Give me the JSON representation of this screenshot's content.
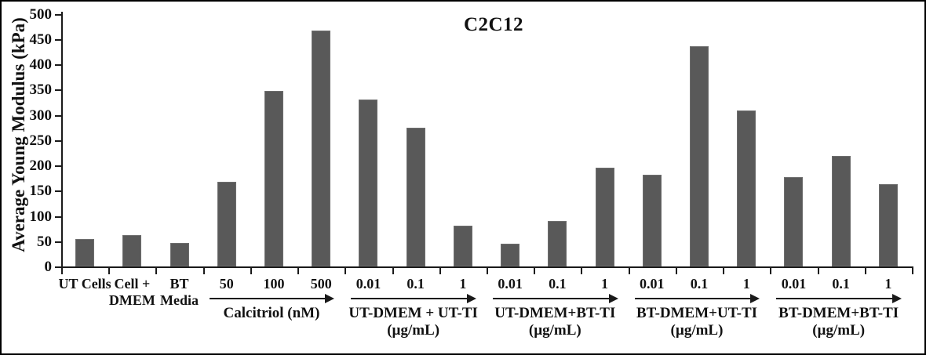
{
  "figure": {
    "title": "C2C12",
    "y_axis_label": "Average Young Modulus (kPa)"
  },
  "chart_data": {
    "type": "bar",
    "title": "C2C12",
    "xlabel": "",
    "ylabel": "Average Young Modulus (kPa)",
    "ylim": [
      0,
      500
    ],
    "ytick_step": 50,
    "ytick_labels": [
      "0",
      "50",
      "100",
      "150",
      "200",
      "250",
      "300",
      "350",
      "400",
      "450",
      "500"
    ],
    "grid": false,
    "legend": false,
    "bar_color": "#595959",
    "categories": [
      "UT Cells",
      "Cell + DMEM",
      "BT Media",
      "50",
      "100",
      "500",
      "0.01",
      "0.1",
      "1",
      "0.01",
      "0.1",
      "1",
      "0.01",
      "0.1",
      "1",
      "0.01",
      "0.1",
      "1"
    ],
    "category_label_lines": [
      [
        "UT Cells"
      ],
      [
        "Cell +",
        "DMEM"
      ],
      [
        "BT",
        "Media"
      ],
      [
        "50"
      ],
      [
        "100"
      ],
      [
        "500"
      ],
      [
        "0.01"
      ],
      [
        "0.1"
      ],
      [
        "1"
      ],
      [
        "0.01"
      ],
      [
        "0.1"
      ],
      [
        "1"
      ],
      [
        "0.01"
      ],
      [
        "0.1"
      ],
      [
        "1"
      ],
      [
        "0.01"
      ],
      [
        "0.1"
      ],
      [
        "1"
      ]
    ],
    "values": [
      55,
      62,
      47,
      168,
      348,
      466,
      331,
      275,
      80,
      45,
      90,
      196,
      181,
      435,
      308,
      176,
      219,
      163
    ],
    "groups": [
      {
        "label_lines": [
          "Calcitriol (nM)"
        ],
        "start": 3,
        "end": 5
      },
      {
        "label_lines": [
          "UT-DMEM + UT-TI",
          "(µg/mL)"
        ],
        "start": 6,
        "end": 8
      },
      {
        "label_lines": [
          "UT-DMEM+BT-TI",
          "(µg/mL)"
        ],
        "start": 9,
        "end": 11
      },
      {
        "label_lines": [
          "BT-DMEM+UT-TI",
          "(µg/mL)"
        ],
        "start": 12,
        "end": 14
      },
      {
        "label_lines": [
          "BT-DMEM+BT-TI",
          "(µg/mL)"
        ],
        "start": 15,
        "end": 17
      }
    ]
  }
}
